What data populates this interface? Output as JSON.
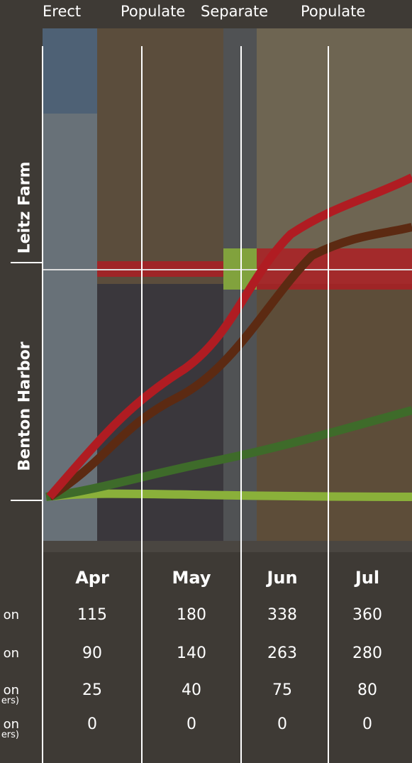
{
  "phases": [
    "Erect",
    "Populate",
    "Separate",
    "Populate"
  ],
  "locations": [
    "Leitz Farm",
    "Benton Harbor"
  ],
  "table": {
    "columns": [
      "Apr",
      "May",
      "Jun",
      "Jul"
    ],
    "rows": [
      {
        "label": "on",
        "values": [
          "115",
          "180",
          "338",
          "360"
        ]
      },
      {
        "label": "on",
        "values": [
          "90",
          "140",
          "263",
          "280"
        ]
      },
      {
        "label": "on",
        "note": "ers)",
        "values": [
          "25",
          "40",
          "75",
          "80"
        ]
      },
      {
        "label": "on",
        "note": "ers)",
        "values": [
          "0",
          "0",
          "0",
          "0"
        ]
      }
    ]
  }
}
